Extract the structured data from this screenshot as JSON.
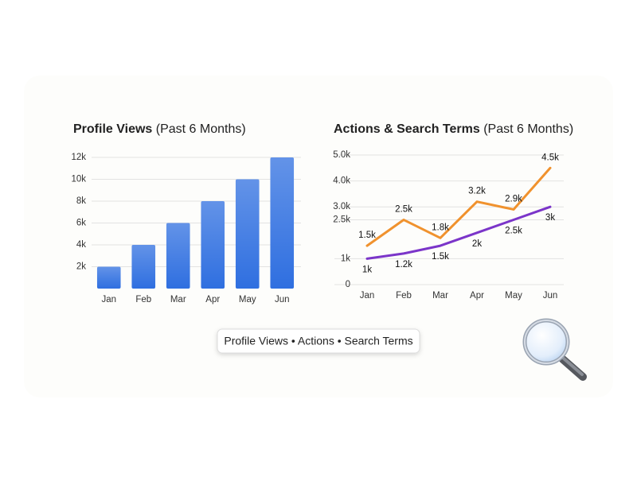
{
  "chart_data": [
    {
      "type": "bar",
      "title": "Profile Views",
      "subtitle": "(Past 6 Months)",
      "categories": [
        "Jan",
        "Feb",
        "Mar",
        "Apr",
        "May",
        "Jun"
      ],
      "values": [
        2000,
        4000,
        6000,
        8000,
        10000,
        12000
      ],
      "color": "#2f6fe0",
      "ylim": [
        0,
        12000
      ],
      "yticks": [
        {
          "value": 2000,
          "label": "2k"
        },
        {
          "value": 4000,
          "label": "4k"
        },
        {
          "value": 6000,
          "label": "6k"
        },
        {
          "value": 8000,
          "label": "8k"
        },
        {
          "value": 10000,
          "label": "10k"
        },
        {
          "value": 12000,
          "label": "12k"
        }
      ],
      "grid": true
    },
    {
      "type": "line",
      "title": "Actions & Search Terms",
      "subtitle": "(Past 6 Months)",
      "categories": [
        "Jan",
        "Feb",
        "Mar",
        "Apr",
        "May",
        "Jun"
      ],
      "series": [
        {
          "color": "#f0922e",
          "values": [
            1500,
            2500,
            1800,
            3200,
            2900,
            4500
          ],
          "value_labels": [
            "1.5k",
            "2.5k",
            "1.8k",
            "3.2k",
            "2.9k",
            "4.5k"
          ]
        },
        {
          "color": "#7b35c9",
          "values": [
            1000,
            1200,
            1500,
            2000,
            2500,
            3000
          ],
          "value_labels": [
            "1k",
            "1.2k",
            "1.5k",
            "2k",
            "2.5k",
            "3k"
          ]
        }
      ],
      "ylim": [
        0,
        5000
      ],
      "yticks": [
        0,
        {
          "value": 1000,
          "label": "1k"
        },
        {
          "value": 2500,
          "label": "2.5k"
        },
        {
          "value": 3000,
          "label": "3.0k"
        },
        {
          "value": 4000,
          "label": "4.0k"
        },
        {
          "value": 5000,
          "label": "5.0k"
        }
      ],
      "grid": true
    }
  ],
  "legend_text": "Profile Views • Actions • Search Terms"
}
